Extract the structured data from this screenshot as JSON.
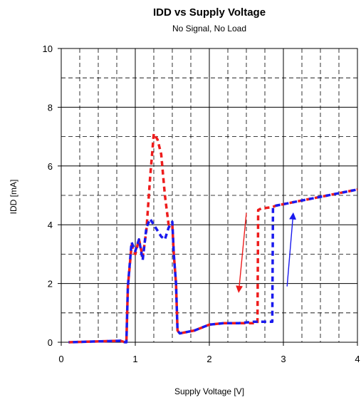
{
  "chart_data": {
    "type": "line",
    "title": "IDD vs Supply Voltage",
    "subtitle": "No Signal, No Load",
    "xlabel": "Supply Voltage [V]",
    "ylabel": "IDD [mA]",
    "xlim": [
      0,
      4
    ],
    "ylim": [
      0,
      10
    ],
    "x_ticks": [
      "0",
      "1",
      "2",
      "3",
      "4"
    ],
    "y_ticks": [
      "0",
      "2",
      "4",
      "6",
      "8",
      "10"
    ],
    "grid": true,
    "colors": {
      "red_series": "#ee1c1c",
      "blue_series": "#1a1aee",
      "grid": "#000000"
    },
    "series": [
      {
        "line_style": "dashed",
        "color": "#ee1c1c",
        "x": [
          0.1,
          0.8,
          0.86,
          0.88,
          0.9,
          0.95,
          1.0,
          1.05,
          1.1,
          1.15,
          1.2,
          1.25,
          1.3,
          1.35,
          1.4,
          1.45,
          1.5,
          1.52,
          1.55,
          1.57,
          1.6,
          1.8,
          2.0,
          2.2,
          2.4,
          2.65,
          2.66,
          2.7,
          2.85,
          2.9,
          3.0,
          3.2,
          3.5,
          4.0
        ],
        "y": [
          0.0,
          0.05,
          0.0,
          0.0,
          1.9,
          3.3,
          3.0,
          3.5,
          2.9,
          3.8,
          5.6,
          7.1,
          6.9,
          6.4,
          5.0,
          4.0,
          4.0,
          3.0,
          2.0,
          0.4,
          0.3,
          0.4,
          0.6,
          0.65,
          0.65,
          0.65,
          4.5,
          4.55,
          4.6,
          4.65,
          4.7,
          4.8,
          4.95,
          5.2
        ]
      },
      {
        "line_style": "dashed",
        "color": "#1a1aee",
        "x": [
          0.1,
          0.8,
          0.86,
          0.88,
          0.9,
          0.95,
          1.0,
          1.05,
          1.1,
          1.15,
          1.2,
          1.25,
          1.3,
          1.35,
          1.4,
          1.45,
          1.5,
          1.52,
          1.55,
          1.57,
          1.6,
          1.8,
          2.0,
          2.2,
          2.4,
          2.6,
          2.85,
          2.86,
          2.9,
          3.0,
          3.2,
          3.5,
          4.0
        ],
        "y": [
          0.0,
          0.05,
          0.0,
          0.0,
          1.9,
          3.4,
          3.1,
          3.5,
          2.8,
          3.9,
          4.2,
          4.0,
          3.8,
          3.6,
          3.5,
          3.9,
          4.1,
          3.0,
          2.0,
          0.4,
          0.3,
          0.4,
          0.6,
          0.65,
          0.65,
          0.7,
          0.7,
          4.6,
          4.65,
          4.7,
          4.8,
          4.95,
          5.2
        ]
      }
    ],
    "annotations": [
      {
        "kind": "arrow",
        "color": "#ee1c1c",
        "from": [
          2.5,
          4.4
        ],
        "to": [
          2.4,
          1.8
        ]
      },
      {
        "kind": "arrow",
        "color": "#1a1aee",
        "from": [
          3.05,
          1.9
        ],
        "to": [
          3.13,
          4.3
        ]
      }
    ]
  }
}
